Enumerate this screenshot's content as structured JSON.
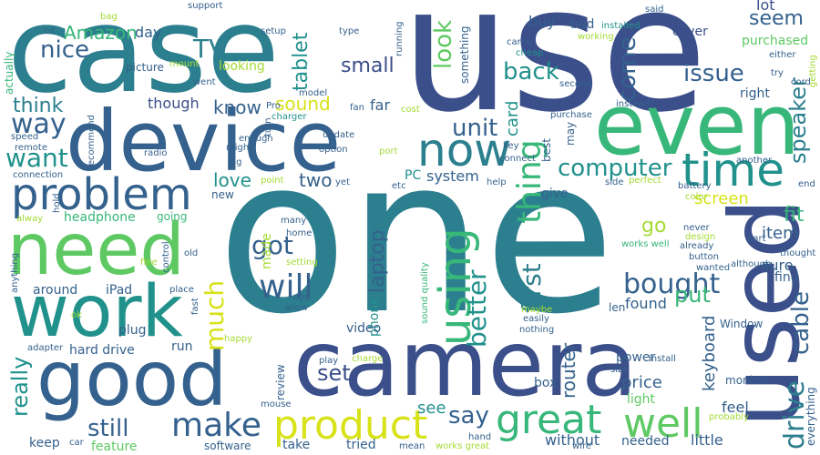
{
  "palette": {
    "dark_navy": "#3b4f8a",
    "slate": "#34618d",
    "blue": "#2c7f8e",
    "teal": "#21918c",
    "green": "#37b779",
    "light_green": "#5ec962",
    "lime": "#a5db36",
    "yellow": "#d8e219",
    "purple": "#482576",
    "dark_purple": "#440154"
  },
  "words": {
    "use": "use",
    "one": "one",
    "case": "case",
    "device": "device",
    "camera": "camera",
    "used": "used",
    "even": "even",
    "need": "need",
    "good": "good",
    "work": "work",
    "problem": "problem",
    "time": "time",
    "now": "now",
    "product": "product",
    "great": "great",
    "well": "well",
    "using": "using",
    "bought": "bought",
    "computer": "computer",
    "make": "make",
    "will": "will",
    "thing": "thing",
    "first": "first",
    "look": "look",
    "unit": "unit",
    "seem": "seem",
    "issue": "issue",
    "back": "back",
    "come": "come",
    "speaker": "speaker",
    "cable": "cable",
    "drive": "drive",
    "nice": "nice",
    "TV": "TV",
    "tablet": "tablet",
    "think": "think",
    "way": "way",
    "want": "want",
    "sound": "sound",
    "know": "know",
    "laptop": "laptop",
    "got": "got",
    "better": "better",
    "really": "really",
    "still": "still",
    "set": "set",
    "say": "say",
    "much": "much",
    "Amazon": "Amazon",
    "small": "small",
    "card": "card",
    "router": "router",
    "keyboard": "keyboard",
    "fit": "fit",
    "item": "item",
    "go": "go",
    "put": "put",
    "screen": "screen",
    "love": "love",
    "two": "two",
    "price": "price",
    "system": "system",
    "lot": "lot",
    "buy": "buy",
    "cover": "cover",
    "purchased": "purchased",
    "right": "right",
    "far": "far",
    "though": "though",
    "headphone": "headphone",
    "iPad": "iPad",
    "around": "around",
    "made": "made",
    "phone": "phone",
    "plug": "plug",
    "video": "video",
    "see": "see",
    "found": "found",
    "feature": "feature",
    "tried": "tried",
    "take": "take",
    "without": "without",
    "needed": "needed",
    "little": "little",
    "feel": "feel",
    "light": "light",
    "monitor": "monitor",
    "Window": "Window",
    "hard_drive": "hard drive",
    "run": "run",
    "keep": "keep",
    "software": "software",
    "power": "power",
    "box": "box",
    "len": "len",
    "sure": "sure",
    "find": "find",
    "everything": "everything",
    "review": "review",
    "picture": "picture",
    "looking": "looking",
    "day": "day",
    "bad": "bad",
    "going": "going",
    "new": "new",
    "actually": "actually",
    "PC": "PC",
    "give": "give",
    "installed": "installed",
    "working": "working",
    "cheap": "cheap",
    "came": "came",
    "second": "second",
    "instead": "instead",
    "purchase": "purchase",
    "may": "may",
    "best": "best",
    "key": "key",
    "connect": "connect",
    "help": "help",
    "side": "side",
    "perfect": "perfect",
    "another": "another",
    "end": "end",
    "battery": "battery",
    "color": "color",
    "either": "either",
    "getting": "getting",
    "try": "try",
    "cord": "cord",
    "said": "said",
    "support": "support",
    "bag": "bag",
    "bit": "bit",
    "setup": "setup",
    "type": "type",
    "running": "running",
    "something": "something",
    "mount": "mount",
    "went": "went",
    "Pro": "Pro",
    "model": "model",
    "fan": "fan",
    "cost": "cost",
    "charger": "charger",
    "update": "update",
    "turn": "turn",
    "option": "option",
    "port": "port",
    "enough": "enough",
    "might": "might",
    "radio": "radio",
    "big": "big",
    "speed": "speed",
    "remote": "remote",
    "recommend": "recommend",
    "connection": "connection",
    "point": "point",
    "yet": "yet",
    "etc": "etc",
    "hold": "hold",
    "alway": "alway",
    "control": "control",
    "anything": "anything",
    "fine": "fine",
    "old": "old",
    "many": "many",
    "home": "home",
    "setting": "setting",
    "app": "app",
    "allow": "allow",
    "ok": "ok",
    "fast": "fast",
    "place": "place",
    "happy": "happy",
    "sound_quality": "sound quality",
    "maybe": "maybe",
    "easily": "easily",
    "nothing": "nothing",
    "adapter": "adapter",
    "play": "play",
    "charge": "charge",
    "mouse": "mouse",
    "car": "car",
    "hand": "hand",
    "mean": "mean",
    "works_great": "works great",
    "wire": "wire",
    "install": "install",
    "size": "size",
    "probably": "probably",
    "works_well": "works well",
    "never": "never",
    "design": "design",
    "part": "part",
    "already": "already",
    "button": "button",
    "wanted": "wanted",
    "although": "although",
    "thought": "thought"
  }
}
